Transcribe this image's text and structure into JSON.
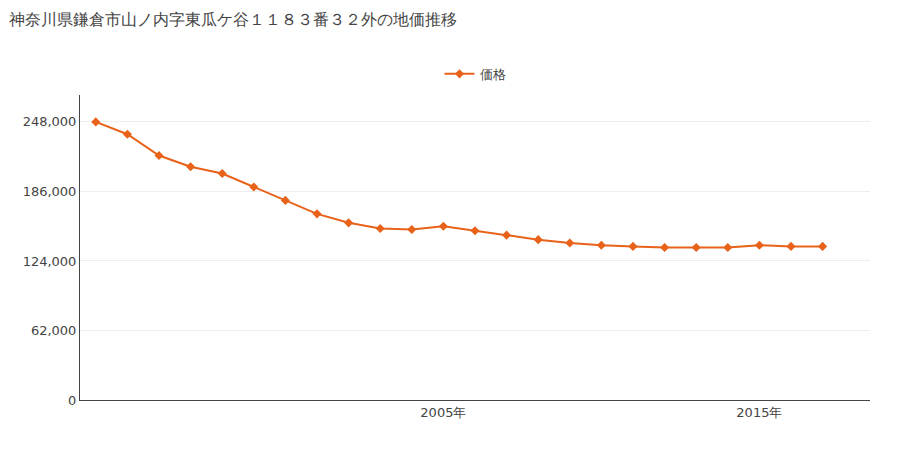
{
  "chart_data": {
    "type": "line",
    "title": "神奈川県鎌倉市山ノ内字東瓜ケ谷１１８３番３２外の地価推移",
    "x": [
      1994,
      1995,
      1996,
      1997,
      1998,
      1999,
      2000,
      2001,
      2002,
      2003,
      2004,
      2005,
      2006,
      2007,
      2008,
      2009,
      2010,
      2011,
      2012,
      2013,
      2014,
      2015,
      2016,
      2017
    ],
    "series": [
      {
        "name": "価格",
        "color": "#e8621a",
        "marker": "diamond",
        "values": [
          248000,
          237000,
          218000,
          208000,
          202000,
          190000,
          178000,
          166000,
          158000,
          153000,
          152000,
          155000,
          151000,
          147000,
          143000,
          140000,
          138000,
          137000,
          136000,
          136000,
          136000,
          138000,
          137000,
          137000
        ]
      }
    ],
    "xlim": [
      1993.5,
      2018.5
    ],
    "xticks": [
      {
        "value": 2005,
        "label": "2005年"
      },
      {
        "value": 2015,
        "label": "2015年"
      }
    ],
    "ylim": [
      0,
      272000
    ],
    "yticks": [
      0,
      {
        "value": 62000,
        "label": "62,000"
      },
      {
        "value": 124000,
        "label": "124,000"
      },
      {
        "value": 186000,
        "label": "186,000"
      },
      {
        "value": 248000,
        "label": "248,000"
      }
    ],
    "grid": "y",
    "legend": "top"
  }
}
